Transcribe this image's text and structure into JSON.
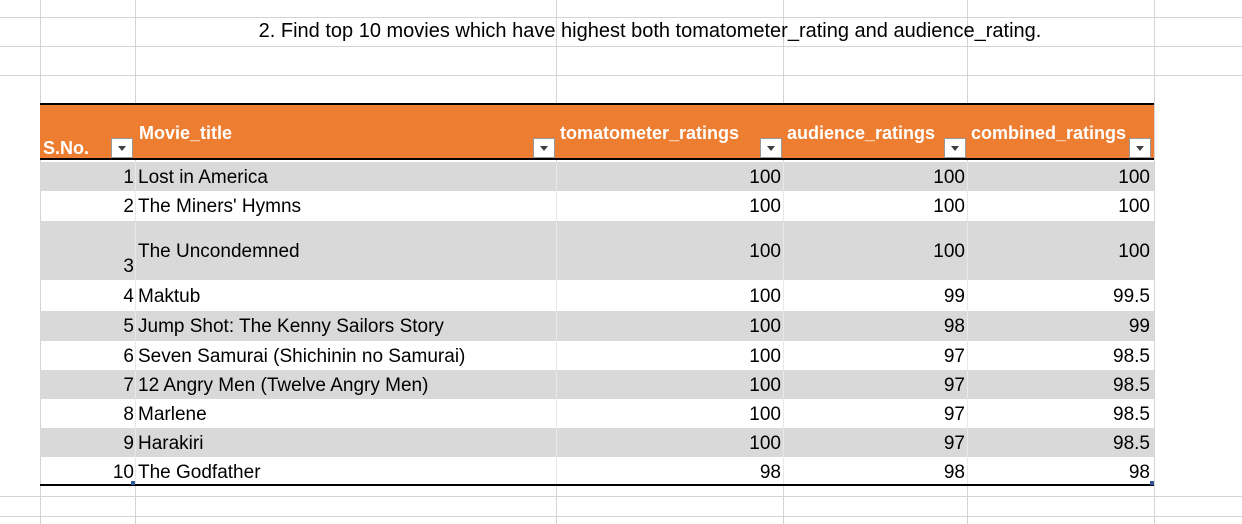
{
  "sheet": {
    "heading": "2. Find top 10 movies which have highest both tomatometer_rating and audience_rating."
  },
  "table": {
    "headers": {
      "sno": "S.No.",
      "title": "Movie_title",
      "tomato": "tomatometer_ratings",
      "audience": "audience_ratings",
      "combined": "combined_ratings"
    },
    "rows": [
      {
        "sno": "1",
        "title": "Lost in America",
        "tomato": "100",
        "audience": "100",
        "combined": "100"
      },
      {
        "sno": "2",
        "title": "The Miners' Hymns",
        "tomato": "100",
        "audience": "100",
        "combined": "100"
      },
      {
        "sno": "3",
        "title": "The Uncondemned",
        "tomato": "100",
        "audience": "100",
        "combined": "100"
      },
      {
        "sno": "4",
        "title": "Maktub",
        "tomato": "100",
        "audience": "99",
        "combined": "99.5"
      },
      {
        "sno": "5",
        "title": "Jump Shot: The Kenny Sailors Story",
        "tomato": "100",
        "audience": "98",
        "combined": "99"
      },
      {
        "sno": "6",
        "title": "Seven Samurai (Shichinin no Samurai)",
        "tomato": "100",
        "audience": "97",
        "combined": "98.5"
      },
      {
        "sno": "7",
        "title": "12 Angry Men (Twelve Angry Men)",
        "tomato": "100",
        "audience": "97",
        "combined": "98.5"
      },
      {
        "sno": "8",
        "title": "Marlene",
        "tomato": "100",
        "audience": "97",
        "combined": "98.5"
      },
      {
        "sno": "9",
        "title": "Harakiri",
        "tomato": "100",
        "audience": "97",
        "combined": "98.5"
      },
      {
        "sno": "10",
        "title": "The Godfather",
        "tomato": "98",
        "audience": "98",
        "combined": "98"
      }
    ]
  },
  "colors": {
    "header_bg": "#ed7d31",
    "band": "#d9d9d9",
    "grid": "#d4d4d4"
  }
}
